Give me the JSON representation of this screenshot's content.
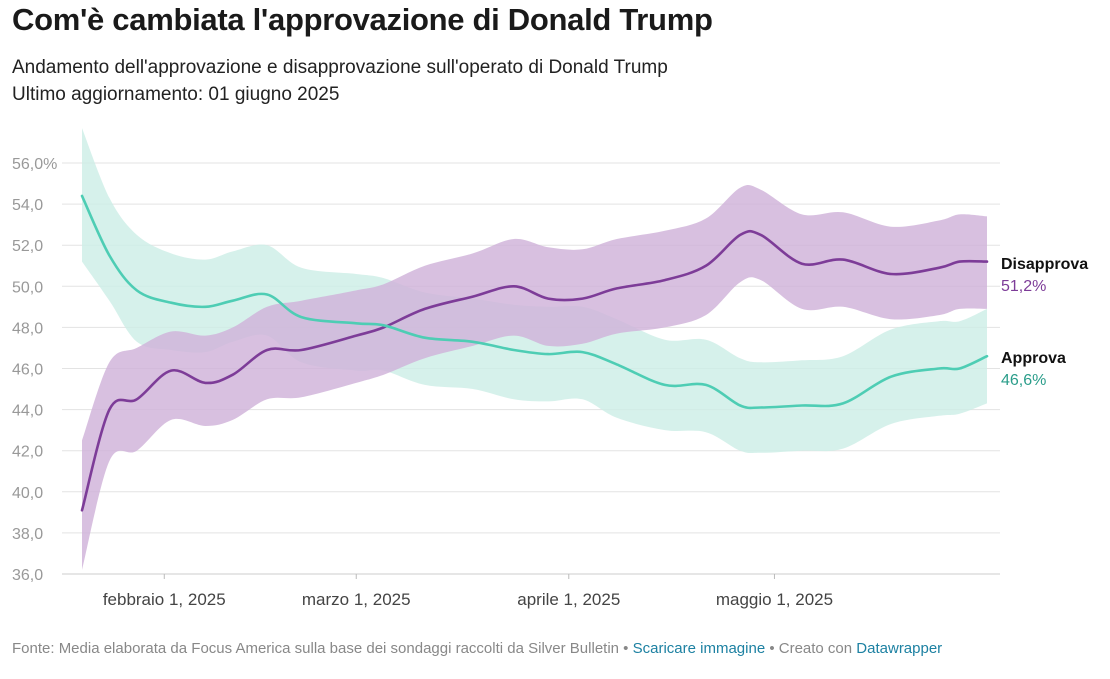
{
  "header": {
    "title": "Com'è cambiata l'approvazione di Donald Trump",
    "subtitle_line1": "Andamento dell'approvazione e disapprovazione sull'operato di Donald Trump",
    "subtitle_line2": "Ultimo aggiornamento: 01 giugno 2025"
  },
  "footer": {
    "source": "Fonte: Media elaborata da Focus America sulla base dei sondaggi raccolti da Silver Bulletin",
    "sep1": " • ",
    "download_link": "Scaricare immagine",
    "sep2": " • Creato con ",
    "tool_link": "Datawrapper"
  },
  "chart_data": {
    "type": "line",
    "title": "Com'è cambiata l'approvazione di Donald Trump",
    "ylim": [
      36,
      56
    ],
    "y_ticks": [
      "56,0%",
      "54,0",
      "52,0",
      "50,0",
      "48,0",
      "46,0",
      "44,0",
      "42,0",
      "40,0",
      "38,0",
      "36,0"
    ],
    "y_tick_values": [
      56,
      54,
      52,
      50,
      48,
      46,
      44,
      42,
      40,
      38,
      36
    ],
    "x_range": [
      "2025-01-20",
      "2025-06-01"
    ],
    "x_ticks": [
      {
        "date": "2025-02-01",
        "label": "febbraio 1, 2025"
      },
      {
        "date": "2025-03-01",
        "label": "marzo 1, 2025"
      },
      {
        "date": "2025-04-01",
        "label": "aprile 1, 2025"
      },
      {
        "date": "2025-05-01",
        "label": "maggio 1, 2025"
      }
    ],
    "grid": true,
    "legend": "direct labels at right end of lines",
    "series": [
      {
        "name": "Disapprova",
        "end_label": "51,2%",
        "color": "#7d3c98",
        "band_color": "#cfb2d9",
        "points": [
          [
            "2025-01-20",
            39.1,
            36.2,
            42.5
          ],
          [
            "2025-01-24",
            44.0,
            41.5,
            46.3
          ],
          [
            "2025-01-28",
            44.5,
            42.0,
            47.0
          ],
          [
            "2025-02-02",
            45.9,
            43.5,
            47.8
          ],
          [
            "2025-02-07",
            45.3,
            43.2,
            47.6
          ],
          [
            "2025-02-11",
            45.7,
            43.5,
            48.0
          ],
          [
            "2025-02-16",
            46.9,
            44.5,
            49.0
          ],
          [
            "2025-02-21",
            46.9,
            44.6,
            49.3
          ],
          [
            "2025-03-01",
            47.6,
            45.3,
            49.8
          ],
          [
            "2025-03-05",
            48.0,
            45.7,
            50.1
          ],
          [
            "2025-03-11",
            48.9,
            46.5,
            51.0
          ],
          [
            "2025-03-18",
            49.5,
            47.1,
            51.6
          ],
          [
            "2025-03-24",
            50.0,
            47.6,
            52.3
          ],
          [
            "2025-03-29",
            49.4,
            47.1,
            51.9
          ],
          [
            "2025-04-03",
            49.4,
            47.2,
            51.8
          ],
          [
            "2025-04-08",
            49.9,
            47.7,
            52.3
          ],
          [
            "2025-04-15",
            50.3,
            48.0,
            52.7
          ],
          [
            "2025-04-21",
            51.0,
            48.6,
            53.3
          ],
          [
            "2025-04-26",
            52.5,
            50.2,
            54.8
          ],
          [
            "2025-04-29",
            52.5,
            50.3,
            54.7
          ],
          [
            "2025-05-05",
            51.1,
            48.9,
            53.5
          ],
          [
            "2025-05-11",
            51.3,
            49.0,
            53.6
          ],
          [
            "2025-05-18",
            50.6,
            48.4,
            52.9
          ],
          [
            "2025-05-25",
            50.9,
            48.6,
            53.2
          ],
          [
            "2025-05-28",
            51.2,
            48.9,
            53.5
          ],
          [
            "2025-06-01",
            51.2,
            48.9,
            53.4
          ]
        ]
      },
      {
        "name": "Approva",
        "end_label": "46,6%",
        "color": "#4ecdb4",
        "label_color": "#2a9d8a",
        "band_color": "#cdeee6",
        "points": [
          [
            "2025-01-20",
            54.4,
            51.2,
            57.7
          ],
          [
            "2025-01-24",
            51.5,
            49.3,
            54.3
          ],
          [
            "2025-01-28",
            49.8,
            47.3,
            52.5
          ],
          [
            "2025-02-02",
            49.2,
            46.9,
            51.6
          ],
          [
            "2025-02-07",
            49.0,
            46.8,
            51.3
          ],
          [
            "2025-02-11",
            49.3,
            47.3,
            51.7
          ],
          [
            "2025-02-16",
            49.6,
            47.6,
            52.0
          ],
          [
            "2025-02-21",
            48.5,
            46.3,
            50.9
          ],
          [
            "2025-03-01",
            48.2,
            45.9,
            50.6
          ],
          [
            "2025-03-05",
            48.1,
            45.9,
            50.4
          ],
          [
            "2025-03-11",
            47.5,
            45.2,
            49.7
          ],
          [
            "2025-03-18",
            47.3,
            45.0,
            49.4
          ],
          [
            "2025-03-24",
            46.9,
            44.5,
            49.1
          ],
          [
            "2025-03-29",
            46.7,
            44.4,
            49.0
          ],
          [
            "2025-04-03",
            46.8,
            44.5,
            49.0
          ],
          [
            "2025-04-08",
            46.2,
            43.6,
            48.4
          ],
          [
            "2025-04-15",
            45.2,
            43.0,
            47.4
          ],
          [
            "2025-04-21",
            45.2,
            42.9,
            47.4
          ],
          [
            "2025-04-26",
            44.2,
            42.0,
            46.5
          ],
          [
            "2025-04-29",
            44.1,
            41.9,
            46.3
          ],
          [
            "2025-05-05",
            44.2,
            42.0,
            46.4
          ],
          [
            "2025-05-11",
            44.3,
            42.1,
            46.6
          ],
          [
            "2025-05-18",
            45.6,
            43.3,
            47.9
          ],
          [
            "2025-05-25",
            46.0,
            43.7,
            48.3
          ],
          [
            "2025-05-28",
            46.0,
            43.8,
            48.3
          ],
          [
            "2025-06-01",
            46.6,
            44.3,
            48.9
          ]
        ]
      }
    ]
  }
}
